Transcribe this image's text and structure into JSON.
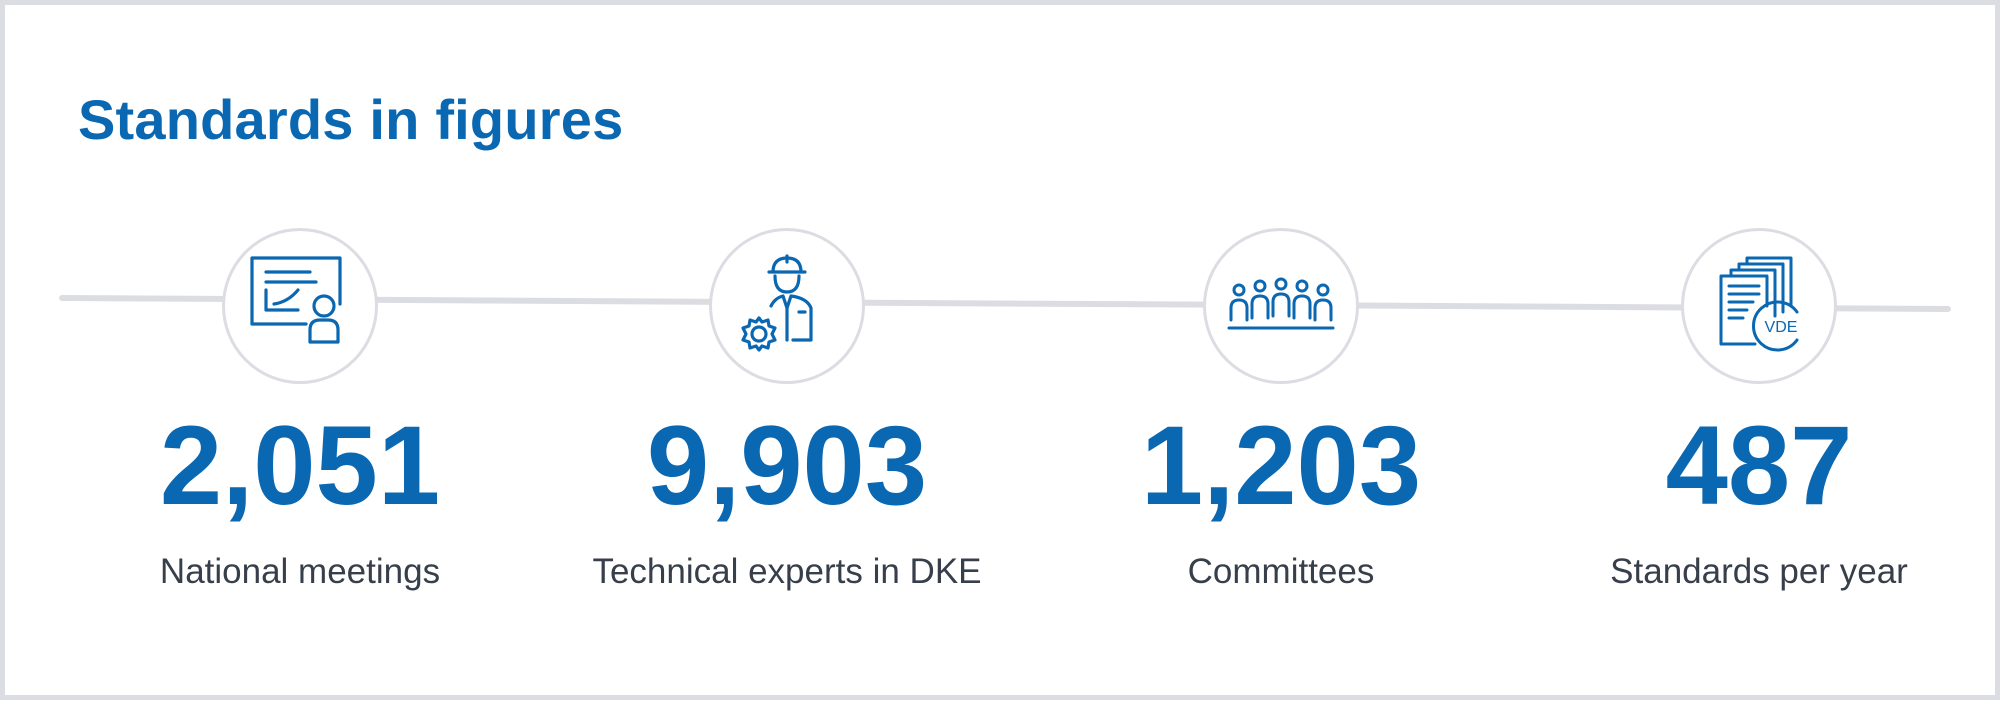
{
  "title": "Standards in figures",
  "colors": {
    "accent": "#0a67b2",
    "text": "#373f4b",
    "line": "#dcdde3"
  },
  "stats": [
    {
      "value": "2,051",
      "label": "National meetings",
      "icon": "presentation-icon"
    },
    {
      "value": "9,903",
      "label": "Technical experts in DKE",
      "icon": "engineer-gear-icon"
    },
    {
      "value": "1,203",
      "label": "Committees",
      "icon": "committee-group-icon"
    },
    {
      "value": "487",
      "label": "Standards per year",
      "icon": "vde-documents-icon"
    }
  ],
  "icons": {
    "vde_badge_text": "VDE"
  }
}
